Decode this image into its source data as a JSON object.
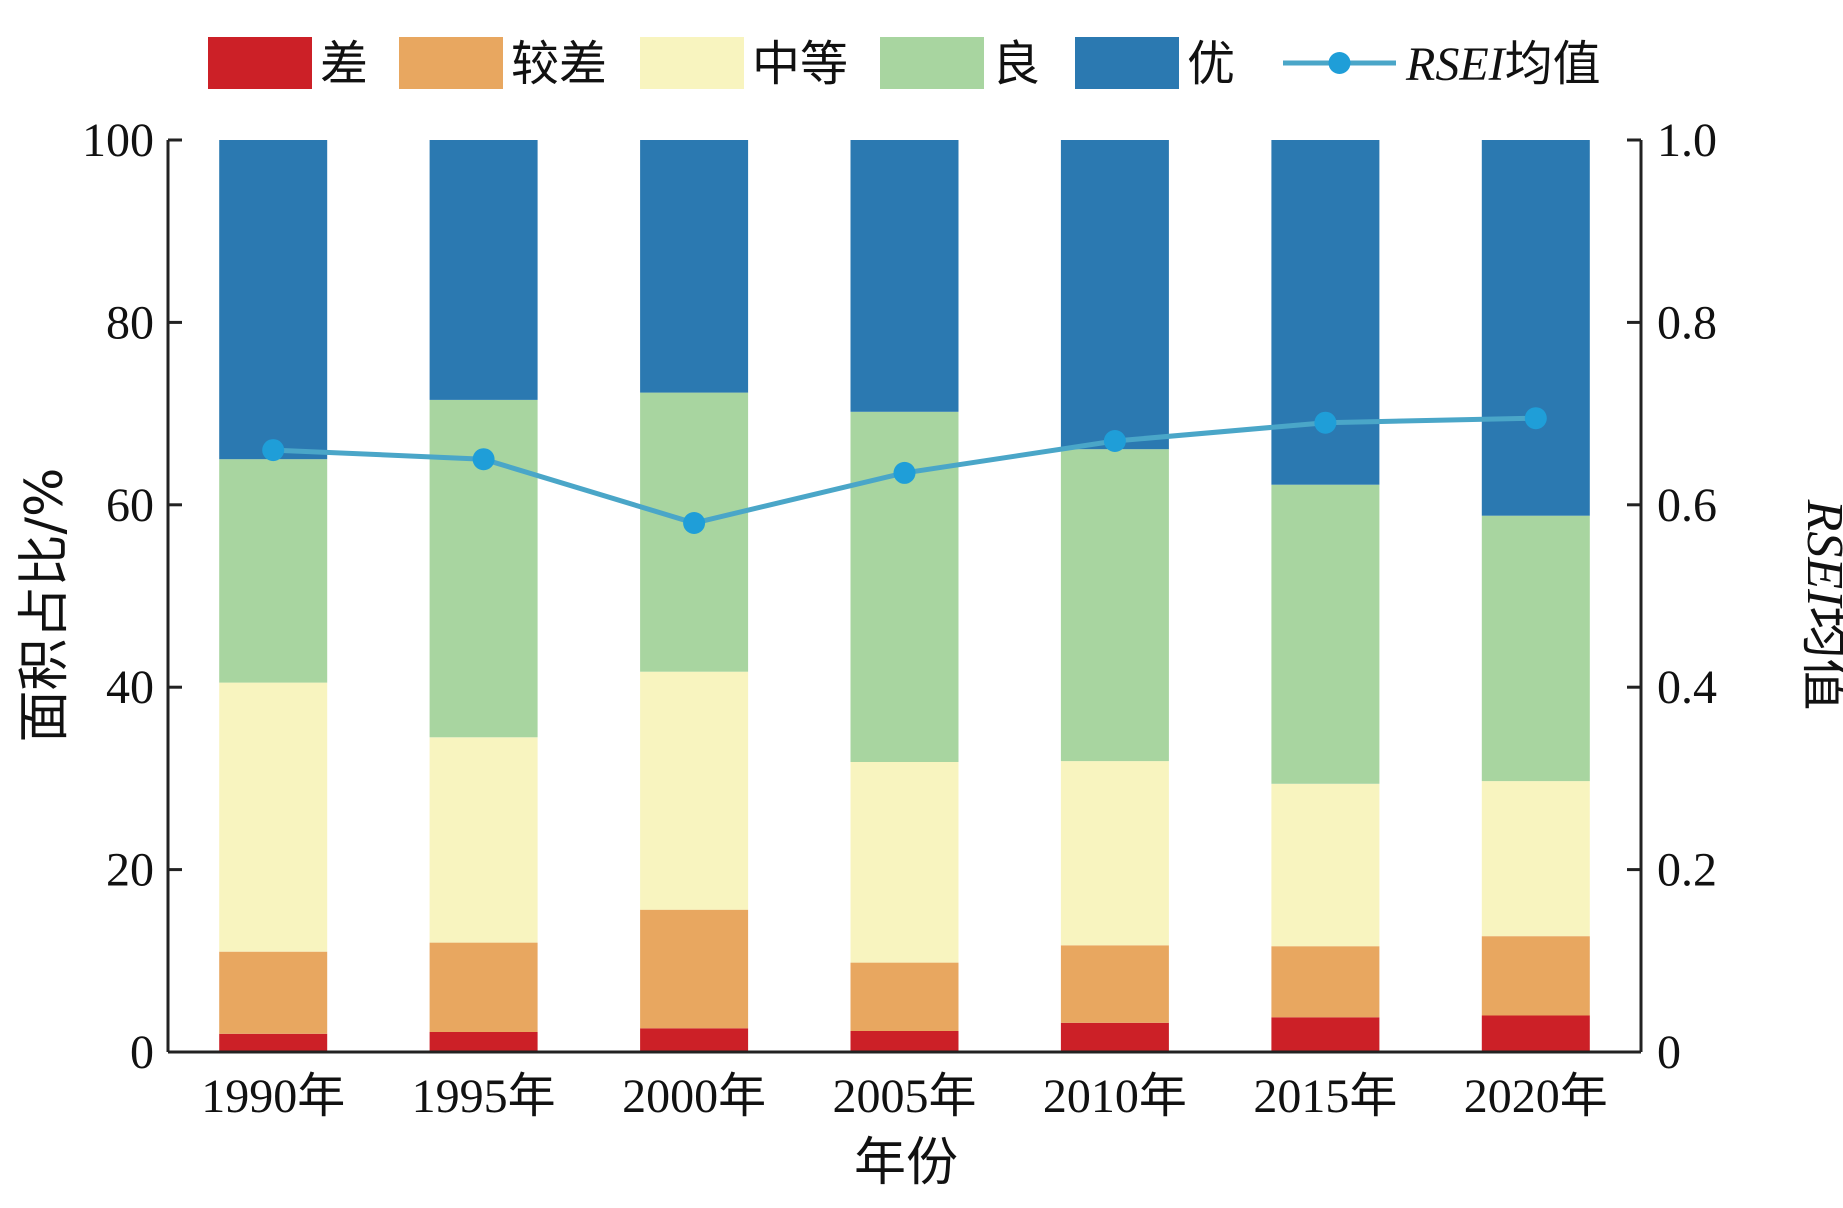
{
  "chart_data": {
    "type": "bar",
    "stacked": true,
    "categories": [
      "1990年",
      "1995年",
      "2000年",
      "2005年",
      "2010年",
      "2015年",
      "2020年"
    ],
    "series": [
      {
        "name": "差",
        "color": "#cc2027",
        "values": [
          2.0,
          2.2,
          2.6,
          2.3,
          3.2,
          3.8,
          4.0
        ]
      },
      {
        "name": "较差",
        "color": "#e8a760",
        "values": [
          9.0,
          9.8,
          13.0,
          7.5,
          8.5,
          7.8,
          8.7
        ]
      },
      {
        "name": "中等",
        "color": "#f8f4bf",
        "values": [
          29.5,
          22.5,
          26.1,
          22.0,
          20.2,
          17.8,
          17.0
        ]
      },
      {
        "name": "良",
        "color": "#a8d5a0",
        "values": [
          24.5,
          37.0,
          30.6,
          38.4,
          34.2,
          32.8,
          29.1
        ]
      },
      {
        "name": "优",
        "color": "#2b79b1",
        "values": [
          35.0,
          28.5,
          27.7,
          29.8,
          33.9,
          37.8,
          41.2
        ]
      }
    ],
    "line_series": {
      "name_prefix": "RSEI",
      "name_suffix": "均值",
      "color": "#4aa6c8",
      "marker_color": "#1f9ed8",
      "values": [
        0.66,
        0.65,
        0.58,
        0.635,
        0.67,
        0.69,
        0.695
      ]
    },
    "xlabel": "年份",
    "ylabel": "面积占比/%",
    "y2label_italic": "RSEI",
    "y2label_rest": "均值",
    "ylim": [
      0,
      100
    ],
    "y2lim": [
      0,
      1.0
    ],
    "yticks": [
      "0",
      "20",
      "40",
      "60",
      "80",
      "100"
    ],
    "y2ticks": [
      "0",
      "0.2",
      "0.4",
      "0.6",
      "0.8",
      "1.0"
    ],
    "legend_position": "top"
  }
}
